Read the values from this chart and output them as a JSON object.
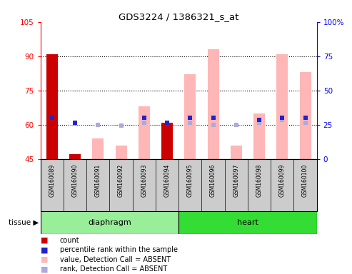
{
  "title": "GDS3224 / 1386321_s_at",
  "samples": [
    "GSM160089",
    "GSM160090",
    "GSM160091",
    "GSM160092",
    "GSM160093",
    "GSM160094",
    "GSM160095",
    "GSM160096",
    "GSM160097",
    "GSM160098",
    "GSM160099",
    "GSM160100"
  ],
  "tissue_groups": [
    {
      "label": "diaphragm",
      "start": 0,
      "end": 5
    },
    {
      "label": "heart",
      "start": 6,
      "end": 11
    }
  ],
  "value_bars": [
    null,
    null,
    54,
    51,
    68,
    null,
    82,
    93,
    51,
    65,
    91,
    83
  ],
  "count_bars": [
    91,
    47,
    null,
    null,
    null,
    61,
    null,
    null,
    null,
    null,
    null,
    null
  ],
  "rank_blue_squares": [
    63,
    61,
    null,
    null,
    63,
    61,
    63,
    63,
    null,
    62,
    63,
    63
  ],
  "rank_light_squares": [
    null,
    null,
    60,
    59.5,
    61,
    null,
    61,
    60,
    60,
    61,
    62,
    61
  ],
  "ylim_left": [
    45,
    105
  ],
  "ylim_right": [
    0,
    100
  ],
  "left_ticks": [
    45,
    60,
    75,
    90,
    105
  ],
  "right_ticks": [
    0,
    25,
    50,
    75,
    100
  ],
  "grid_lines": [
    60,
    75,
    90
  ],
  "bar_bottom": 45,
  "value_color": "#FFB6B6",
  "count_color": "#CC0000",
  "rank_blue_color": "#2222CC",
  "rank_light_color": "#AAAADD",
  "tissue_diaphragm_color": "#99EE99",
  "tissue_heart_color": "#33DD33",
  "sample_bg_color": "#CCCCCC",
  "legend_items": [
    {
      "color": "#CC0000",
      "label": "count"
    },
    {
      "color": "#2222CC",
      "label": "percentile rank within the sample"
    },
    {
      "color": "#FFB6B6",
      "label": "value, Detection Call = ABSENT"
    },
    {
      "color": "#AAAADD",
      "label": "rank, Detection Call = ABSENT"
    }
  ]
}
